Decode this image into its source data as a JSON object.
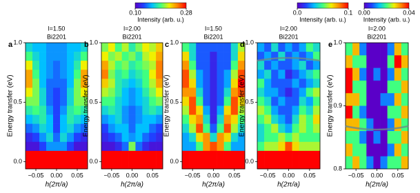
{
  "chart_data": [
    {
      "type": "colorbar",
      "label": "Intensity (arb. u.)",
      "clim": [
        0.1,
        0.28
      ],
      "ticks": [
        {
          "value": 0.1,
          "label": "0.10"
        },
        0.28
      ],
      "colormap": [
        "#5a00c8",
        "#2040ff",
        "#00c0ff",
        "#40ff80",
        "#f0f000",
        "#ff8000",
        "#ff0000"
      ]
    },
    {
      "type": "colorbar",
      "label": "Intensity (arb. u.)",
      "clim": [
        0,
        0.1
      ],
      "ticks": [
        {
          "value": 0,
          "label": "0.0"
        },
        0.1
      ],
      "colormap": [
        "#5a00c8",
        "#2040ff",
        "#00c0ff",
        "#40ff80",
        "#f0f000",
        "#ff8000",
        "#ff0000"
      ]
    },
    {
      "type": "colorbar",
      "label": "Intensity (arb. u.)",
      "clim": [
        0,
        0.04
      ],
      "ticks": [
        {
          "value": 0,
          "label": "0.00"
        },
        0.04
      ],
      "colormap": [
        "#5a00c8",
        "#2040ff",
        "#00c0ff",
        "#40ff80",
        "#f0f000",
        "#ff8000",
        "#ff0000"
      ]
    },
    {
      "type": "heatmap",
      "panel": "a",
      "title": "l=1.50",
      "subtitle": "Bi2201",
      "xlabel": "h(2π/a)",
      "ylabel": "Energy transfer (eV)",
      "xlim": [
        -0.075,
        0.075
      ],
      "ylim": [
        -0.06,
        1.0
      ],
      "xticks": [
        {
          "value": -0.05,
          "label": "−0.05"
        },
        {
          "value": 0,
          "label": "0.00"
        },
        0.05
      ],
      "yticks": [
        {
          "value": 0,
          "label": "0.0"
        },
        0.5,
        {
          "value": 1,
          "label": "1.0"
        }
      ],
      "clim": [
        0.1,
        0.28
      ],
      "colormap": [
        "#5a00c8",
        "#2040ff",
        "#00c0ff",
        "#40ff80",
        "#f0f000",
        "#ff8000",
        "#ff0000"
      ],
      "z": [
        [
          0.17,
          0.16,
          0.16,
          0.15,
          0.15,
          0.15,
          0.16,
          0.16,
          0.17
        ],
        [
          0.19,
          0.17,
          0.16,
          0.15,
          0.15,
          0.15,
          0.16,
          0.17,
          0.19
        ],
        [
          0.22,
          0.18,
          0.16,
          0.15,
          0.14,
          0.15,
          0.16,
          0.18,
          0.22
        ],
        [
          0.24,
          0.19,
          0.16,
          0.15,
          0.14,
          0.15,
          0.16,
          0.19,
          0.24
        ],
        [
          0.24,
          0.2,
          0.16,
          0.14,
          0.14,
          0.14,
          0.16,
          0.2,
          0.24
        ],
        [
          0.22,
          0.2,
          0.17,
          0.14,
          0.13,
          0.14,
          0.17,
          0.2,
          0.22
        ],
        [
          0.2,
          0.2,
          0.17,
          0.14,
          0.13,
          0.14,
          0.17,
          0.2,
          0.2
        ],
        [
          0.18,
          0.19,
          0.18,
          0.15,
          0.13,
          0.15,
          0.18,
          0.19,
          0.18
        ],
        [
          0.16,
          0.17,
          0.18,
          0.16,
          0.13,
          0.16,
          0.18,
          0.17,
          0.16
        ],
        [
          0.14,
          0.15,
          0.17,
          0.16,
          0.13,
          0.16,
          0.17,
          0.15,
          0.14
        ],
        [
          0.12,
          0.13,
          0.15,
          0.17,
          0.14,
          0.17,
          0.15,
          0.13,
          0.12
        ],
        [
          0.11,
          0.11,
          0.13,
          0.15,
          0.15,
          0.15,
          0.13,
          0.11,
          0.11
        ],
        [
          0.28,
          0.28,
          0.28,
          0.28,
          0.28,
          0.28,
          0.28,
          0.28,
          0.28
        ],
        [
          0.28,
          0.28,
          0.28,
          0.28,
          0.28,
          0.28,
          0.28,
          0.28,
          0.28
        ]
      ]
    },
    {
      "type": "heatmap",
      "panel": "b",
      "title": "l=2.00",
      "subtitle": "Bi2201",
      "xlabel": "h(2π/a)",
      "ylabel": "Energy transfer (eV)",
      "xlim": [
        -0.075,
        0.075
      ],
      "ylim": [
        -0.06,
        1.0
      ],
      "xticks": [
        {
          "value": -0.05,
          "label": "−0.05"
        },
        {
          "value": 0,
          "label": "0.00"
        },
        0.05
      ],
      "yticks": [
        {
          "value": 0,
          "label": "0.0"
        },
        0.5,
        {
          "value": 1,
          "label": "1.0"
        }
      ],
      "clim": [
        0.1,
        0.28
      ],
      "colormap": [
        "#5a00c8",
        "#2040ff",
        "#00c0ff",
        "#40ff80",
        "#f0f000",
        "#ff8000",
        "#ff0000"
      ],
      "z": [
        [
          0.2,
          0.22,
          0.19,
          0.21,
          0.18,
          0.2,
          0.22,
          0.21,
          0.23
        ],
        [
          0.22,
          0.2,
          0.21,
          0.19,
          0.2,
          0.18,
          0.21,
          0.22,
          0.24
        ],
        [
          0.24,
          0.21,
          0.19,
          0.2,
          0.18,
          0.19,
          0.2,
          0.21,
          0.25
        ],
        [
          0.25,
          0.2,
          0.18,
          0.19,
          0.17,
          0.18,
          0.19,
          0.22,
          0.25
        ],
        [
          0.23,
          0.21,
          0.18,
          0.17,
          0.16,
          0.17,
          0.19,
          0.21,
          0.24
        ],
        [
          0.21,
          0.2,
          0.18,
          0.16,
          0.15,
          0.16,
          0.18,
          0.2,
          0.22
        ],
        [
          0.19,
          0.19,
          0.17,
          0.16,
          0.15,
          0.16,
          0.17,
          0.19,
          0.2
        ],
        [
          0.17,
          0.18,
          0.17,
          0.15,
          0.14,
          0.15,
          0.17,
          0.18,
          0.17
        ],
        [
          0.15,
          0.16,
          0.17,
          0.15,
          0.14,
          0.15,
          0.16,
          0.16,
          0.15
        ],
        [
          0.13,
          0.15,
          0.16,
          0.16,
          0.14,
          0.16,
          0.16,
          0.14,
          0.13
        ],
        [
          0.12,
          0.13,
          0.14,
          0.16,
          0.15,
          0.16,
          0.14,
          0.13,
          0.12
        ],
        [
          0.11,
          0.11,
          0.12,
          0.14,
          0.2,
          0.14,
          0.12,
          0.11,
          0.11
        ],
        [
          0.28,
          0.28,
          0.28,
          0.28,
          0.28,
          0.28,
          0.28,
          0.28,
          0.28
        ],
        [
          0.28,
          0.28,
          0.28,
          0.28,
          0.28,
          0.28,
          0.28,
          0.28,
          0.28
        ]
      ]
    },
    {
      "type": "heatmap",
      "panel": "c",
      "title": "l=1.50",
      "subtitle": "Bi2201",
      "xlabel": "h(2π/a)",
      "ylabel": "Energy transfer (eV)",
      "xlim": [
        -0.075,
        0.075
      ],
      "ylim": [
        -0.06,
        1.0
      ],
      "xticks": [
        {
          "value": -0.05,
          "label": "−0.05"
        },
        {
          "value": 0,
          "label": "0.00"
        },
        0.05
      ],
      "yticks": [
        {
          "value": 0,
          "label": "0.0"
        },
        0.5,
        {
          "value": 1,
          "label": "1.0"
        }
      ],
      "clim": [
        0,
        0.1
      ],
      "colormap": [
        "#5a00c8",
        "#2040ff",
        "#00c0ff",
        "#40ff80",
        "#f0f000",
        "#ff8000",
        "#ff0000"
      ],
      "z": [
        [
          0.05,
          0.04,
          0.02,
          0.02,
          0.02,
          0.02,
          0.02,
          0.04,
          0.06
        ],
        [
          0.07,
          0.04,
          0.02,
          0.02,
          0.01,
          0.02,
          0.02,
          0.04,
          0.07
        ],
        [
          0.08,
          0.05,
          0.02,
          0.02,
          0.01,
          0.02,
          0.02,
          0.05,
          0.08
        ],
        [
          0.09,
          0.06,
          0.03,
          0.02,
          0.01,
          0.02,
          0.03,
          0.06,
          0.09
        ],
        [
          0.09,
          0.07,
          0.03,
          0.02,
          0.01,
          0.02,
          0.03,
          0.07,
          0.1
        ],
        [
          0.08,
          0.08,
          0.04,
          0.02,
          0.01,
          0.02,
          0.04,
          0.08,
          0.09
        ],
        [
          0.07,
          0.09,
          0.05,
          0.02,
          0.01,
          0.02,
          0.05,
          0.09,
          0.07
        ],
        [
          0.06,
          0.09,
          0.07,
          0.03,
          0.01,
          0.03,
          0.07,
          0.09,
          0.06
        ],
        [
          0.05,
          0.07,
          0.08,
          0.04,
          0.01,
          0.04,
          0.08,
          0.07,
          0.05
        ],
        [
          0.04,
          0.06,
          0.09,
          0.05,
          0.02,
          0.05,
          0.09,
          0.06,
          0.04
        ],
        [
          0.03,
          0.04,
          0.07,
          0.08,
          0.04,
          0.08,
          0.07,
          0.04,
          0.03
        ],
        [
          0.03,
          0.03,
          0.05,
          0.08,
          0.09,
          0.08,
          0.05,
          0.03,
          0.03
        ],
        [
          0.1,
          0.1,
          0.1,
          0.1,
          0.1,
          0.1,
          0.1,
          0.1,
          0.1
        ],
        [
          0.1,
          0.1,
          0.1,
          0.1,
          0.1,
          0.1,
          0.1,
          0.1,
          0.1
        ]
      ]
    },
    {
      "type": "heatmap",
      "panel": "d",
      "title": "l=2.00",
      "subtitle": "Bi2201",
      "xlabel": "h(2π/a)",
      "ylabel": "Energy transfer (eV)",
      "xlim": [
        -0.075,
        0.075
      ],
      "ylim": [
        -0.06,
        1.0
      ],
      "xticks": [
        {
          "value": -0.05,
          "label": "−0.05"
        },
        {
          "value": 0,
          "label": "0.00"
        },
        0.05
      ],
      "yticks": [
        {
          "value": 0,
          "label": "0.0"
        },
        0.5,
        {
          "value": 1,
          "label": "1.0"
        }
      ],
      "clim": [
        0,
        0.1
      ],
      "colormap": [
        "#5a00c8",
        "#2040ff",
        "#00c0ff",
        "#40ff80",
        "#f0f000",
        "#ff8000",
        "#ff0000"
      ],
      "z": [
        [
          0.03,
          0.02,
          0.04,
          0.02,
          0.03,
          0.02,
          0.03,
          0.05,
          0.04
        ],
        [
          0.02,
          0.03,
          0.02,
          0.04,
          0.02,
          0.03,
          0.02,
          0.03,
          0.05
        ],
        [
          0.04,
          0.02,
          0.03,
          0.02,
          0.02,
          0.03,
          0.04,
          0.02,
          0.03
        ],
        [
          0.03,
          0.04,
          0.02,
          0.03,
          0.01,
          0.02,
          0.03,
          0.04,
          0.05
        ],
        [
          0.05,
          0.03,
          0.02,
          0.02,
          0.02,
          0.03,
          0.02,
          0.03,
          0.04
        ],
        [
          0.04,
          0.03,
          0.03,
          0.02,
          0.01,
          0.02,
          0.03,
          0.05,
          0.06
        ],
        [
          0.05,
          0.04,
          0.02,
          0.03,
          0.02,
          0.02,
          0.04,
          0.03,
          0.05
        ],
        [
          0.06,
          0.05,
          0.03,
          0.02,
          0.02,
          0.03,
          0.05,
          0.04,
          0.06
        ],
        [
          0.05,
          0.06,
          0.04,
          0.03,
          0.02,
          0.04,
          0.06,
          0.05,
          0.07
        ],
        [
          0.04,
          0.05,
          0.06,
          0.04,
          0.03,
          0.05,
          0.06,
          0.05,
          0.06
        ],
        [
          0.04,
          0.05,
          0.05,
          0.06,
          0.05,
          0.06,
          0.05,
          0.05,
          0.05
        ],
        [
          0.05,
          0.06,
          0.06,
          0.07,
          0.09,
          0.07,
          0.06,
          0.06,
          0.06
        ],
        [
          0.1,
          0.1,
          0.1,
          0.1,
          0.1,
          0.1,
          0.1,
          0.1,
          0.1
        ],
        [
          0.1,
          0.1,
          0.1,
          0.1,
          0.1,
          0.1,
          0.1,
          0.1,
          0.1
        ]
      ]
    },
    {
      "type": "heatmap",
      "panel": "e",
      "title": "l=2.00",
      "subtitle": "Bi2201",
      "xlabel": "h(2π/a)",
      "ylabel": "Energy transfer (eV)",
      "xlim": [
        -0.075,
        0.075
      ],
      "ylim": [
        0.8,
        1.0
      ],
      "xticks": [
        {
          "value": -0.05,
          "label": "−0.05"
        },
        {
          "value": 0,
          "label": "0.00"
        },
        0.05
      ],
      "yticks": [
        0.8,
        0.9,
        {
          "value": 1,
          "label": "1.0"
        }
      ],
      "clim": [
        0,
        0.04
      ],
      "colormap": [
        "#5a00c8",
        "#2040ff",
        "#00c0ff",
        "#40ff80",
        "#f0f000",
        "#ff8000",
        "#ff0000"
      ],
      "z": [
        [
          0.02,
          0.03,
          0.01,
          0,
          0,
          0,
          0.01,
          0.03,
          0.02
        ],
        [
          0.03,
          0.02,
          0.02,
          0,
          0,
          0,
          0.02,
          0.04,
          0.03
        ],
        [
          0.04,
          0.03,
          0.01,
          0,
          0.01,
          0,
          0.01,
          0.03,
          0.02
        ],
        [
          0.04,
          0.02,
          0.02,
          0,
          0,
          0,
          0.02,
          0.02,
          0.03
        ],
        [
          0.03,
          0.03,
          0.02,
          0,
          0,
          0.01,
          0.01,
          0.03,
          0.02
        ],
        [
          0.04,
          0.02,
          0.01,
          0,
          0,
          0,
          0.02,
          0.02,
          0.03
        ],
        [
          0.03,
          0.03,
          0.02,
          0.01,
          0,
          0,
          0.01,
          0.03,
          0.02
        ],
        [
          0.02,
          0.02,
          0.01,
          0,
          0.01,
          0,
          0.02,
          0.02,
          0.03
        ],
        [
          0.03,
          0.02,
          0.02,
          0,
          0,
          0,
          0.01,
          0.03,
          0.02
        ],
        [
          0.02,
          0.03,
          0.02,
          0.01,
          0,
          0.01,
          0.02,
          0.02,
          0.03
        ]
      ]
    }
  ]
}
